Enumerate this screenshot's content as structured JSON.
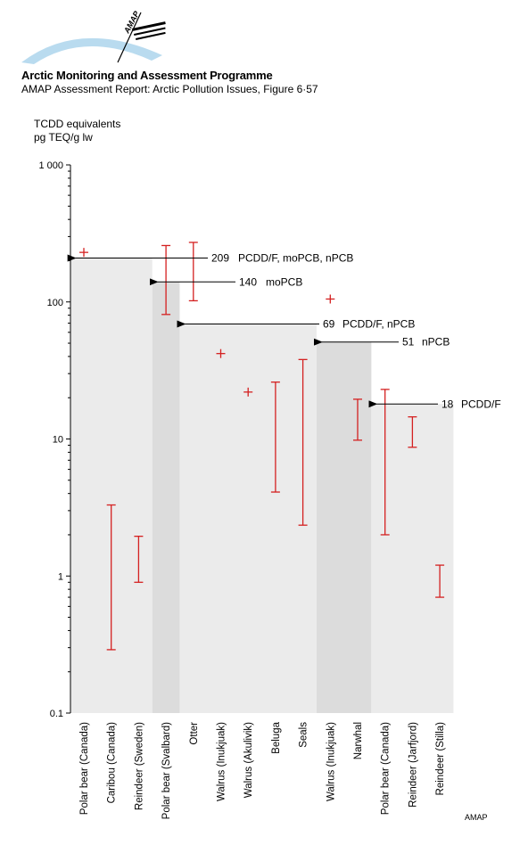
{
  "header": {
    "logo_text": "AMAP",
    "org_title": "Arctic Monitoring and Assessment Programme",
    "report_title": "AMAP Assessment Report: Arctic Pollution Issues, Figure 6·57"
  },
  "footer": {
    "credit": "AMAP"
  },
  "colors": {
    "range_marks": "#d42020",
    "band_light": "#ebebeb",
    "band_dark": "#dcdcdc",
    "arrows": "#000000"
  },
  "chart_data": {
    "type": "range",
    "title": "",
    "ylabel_lines": [
      "TCDD equivalents",
      "pg TEQ/g lw"
    ],
    "xlabel": "",
    "yscale": "log",
    "ylim": [
      0.1,
      1000
    ],
    "yticks": [
      {
        "value": 0.1,
        "label": "0.1"
      },
      {
        "value": 1,
        "label": "1"
      },
      {
        "value": 10,
        "label": "10"
      },
      {
        "value": 100,
        "label": "100"
      },
      {
        "value": 1000,
        "label": "1 000"
      }
    ],
    "grid": false,
    "categories": [
      "Polar bear (Canada)",
      "Caribou (Canada)",
      "Reindeer (Sweden)",
      "Polar bear (Svalbard)",
      "Otter",
      "Walrus (Inukjuak)",
      "Walrus (Akulivik)",
      "Beluga",
      "Seals",
      "Walrus (Inukjuak)",
      "Narwhal",
      "Polar bear (Canada)",
      "Reindeer (Jarfjord)",
      "Reindeer (Stilla)"
    ],
    "ranges": [
      {
        "category": 0,
        "point": 230
      },
      {
        "category": 1,
        "low": 0.29,
        "high": 3.3
      },
      {
        "category": 2,
        "low": 0.9,
        "high": 1.95
      },
      {
        "category": 3,
        "low": 81,
        "high": 258
      },
      {
        "category": 4,
        "low": 102,
        "high": 272
      },
      {
        "category": 5,
        "point": 42
      },
      {
        "category": 6,
        "point": 22
      },
      {
        "category": 7,
        "low": 4.1,
        "high": 26
      },
      {
        "category": 8,
        "low": 2.35,
        "high": 38
      },
      {
        "category": 9,
        "point": 105
      },
      {
        "category": 10,
        "low": 9.8,
        "high": 19.5
      },
      {
        "category": 11,
        "low": 2.0,
        "high": 23
      },
      {
        "category": 12,
        "low": 8.7,
        "high": 14.5
      },
      {
        "category": 13,
        "low": 0.7,
        "high": 1.2
      }
    ],
    "bands": [
      {
        "from": 0,
        "to": 2,
        "value": 209,
        "tone": "light",
        "label_value": "209",
        "label_text": "PCDD/F, moPCB, nPCB"
      },
      {
        "from": 3,
        "to": 3,
        "value": 140,
        "tone": "dark",
        "label_value": "140",
        "label_text": "moPCB"
      },
      {
        "from": 4,
        "to": 8,
        "value": 69,
        "tone": "light",
        "label_value": "69",
        "label_text": "PCDD/F, nPCB"
      },
      {
        "from": 9,
        "to": 10,
        "value": 51,
        "tone": "dark",
        "label_value": "51",
        "label_text": "nPCB"
      },
      {
        "from": 11,
        "to": 13,
        "value": 18,
        "tone": "light",
        "label_value": "18",
        "label_text": "PCDD/F"
      }
    ]
  }
}
